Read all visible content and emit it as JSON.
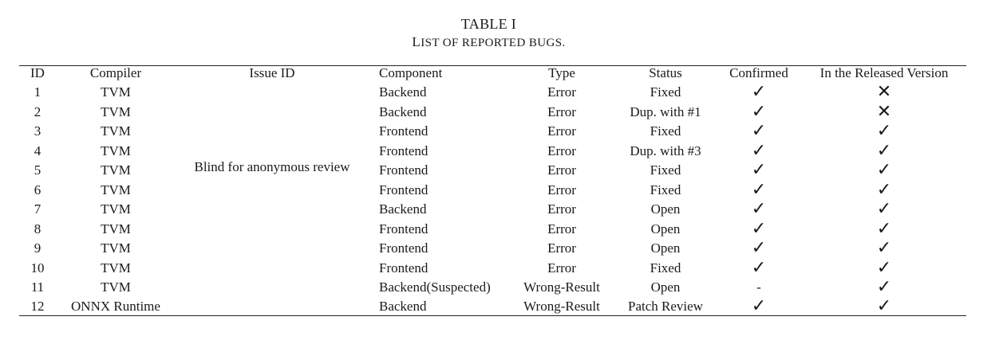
{
  "caption": {
    "label": "TABLE I",
    "title_first": "L",
    "title_rest": "IST OF REPORTED BUGS."
  },
  "headers": {
    "id": "ID",
    "compiler": "Compiler",
    "issue_id": "Issue ID",
    "component": "Component",
    "type": "Type",
    "status": "Status",
    "confirmed": "Confirmed",
    "released": "In the Released Version"
  },
  "issue_id_value": "Blind for anonymous review",
  "marks": {
    "check": "✓",
    "cross": "✕",
    "dash": "-"
  },
  "rows": [
    {
      "id": "1",
      "compiler": "TVM",
      "component": "Backend",
      "type": "Error",
      "status": "Fixed",
      "confirmed": "✓",
      "released": "✕"
    },
    {
      "id": "2",
      "compiler": "TVM",
      "component": "Backend",
      "type": "Error",
      "status": "Dup. with #1",
      "confirmed": "✓",
      "released": "✕"
    },
    {
      "id": "3",
      "compiler": "TVM",
      "component": "Frontend",
      "type": "Error",
      "status": "Fixed",
      "confirmed": "✓",
      "released": "✓"
    },
    {
      "id": "4",
      "compiler": "TVM",
      "component": "Frontend",
      "type": "Error",
      "status": "Dup. with #3",
      "confirmed": "✓",
      "released": "✓"
    },
    {
      "id": "5",
      "compiler": "TVM",
      "component": "Frontend",
      "type": "Error",
      "status": "Fixed",
      "confirmed": "✓",
      "released": "✓"
    },
    {
      "id": "6",
      "compiler": "TVM",
      "component": "Frontend",
      "type": "Error",
      "status": "Fixed",
      "confirmed": "✓",
      "released": "✓"
    },
    {
      "id": "7",
      "compiler": "TVM",
      "component": "Backend",
      "type": "Error",
      "status": "Open",
      "confirmed": "✓",
      "released": "✓"
    },
    {
      "id": "8",
      "compiler": "TVM",
      "component": "Frontend",
      "type": "Error",
      "status": "Open",
      "confirmed": "✓",
      "released": "✓"
    },
    {
      "id": "9",
      "compiler": "TVM",
      "component": "Frontend",
      "type": "Error",
      "status": "Open",
      "confirmed": "✓",
      "released": "✓"
    },
    {
      "id": "10",
      "compiler": "TVM",
      "component": "Frontend",
      "type": "Error",
      "status": "Fixed",
      "confirmed": "✓",
      "released": "✓"
    },
    {
      "id": "11",
      "compiler": "TVM",
      "component": "Backend(Suspected)",
      "type": "Wrong-Result",
      "status": "Open",
      "confirmed": "-",
      "released": "✓"
    },
    {
      "id": "12",
      "compiler": "ONNX Runtime",
      "component": "Backend",
      "type": "Wrong-Result",
      "status": "Patch Review",
      "confirmed": "✓",
      "released": "✓"
    }
  ]
}
